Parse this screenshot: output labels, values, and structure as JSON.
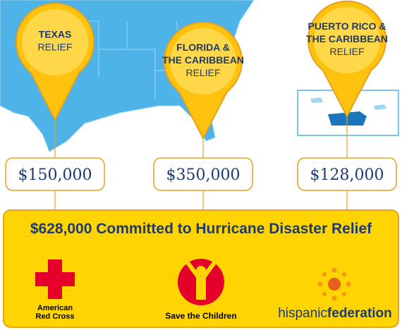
{
  "pins": [
    {
      "title_lines": [
        "TEXAS"
      ],
      "subtitle": "RELIEF",
      "amount": "$150,000"
    },
    {
      "title_lines": [
        "FLORIDA &",
        "THE CARIBBEAN"
      ],
      "subtitle": "RELIEF",
      "amount": "$350,000"
    },
    {
      "title_lines": [
        "PUERTO RICO &",
        "THE CARIBBEAN"
      ],
      "subtitle": "RELIEF",
      "amount": "$128,000"
    }
  ],
  "total": "$628,000 Committed to Hurricane Disaster Relief",
  "logos": {
    "red_cross_lines": [
      "American",
      "Red Cross"
    ],
    "save_the_children": "Save the Children",
    "hispanic": "hispanic",
    "federation": "federation"
  }
}
